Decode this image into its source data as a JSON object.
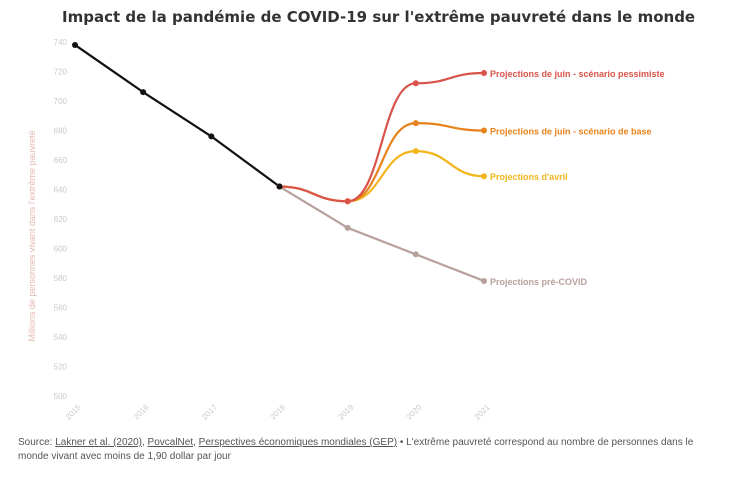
{
  "chart_data": {
    "type": "line",
    "title": "Impact de la pandémie de COVID-19 sur l'extrême pauvreté dans le monde",
    "xlabel": "",
    "ylabel": "Millions de personnes vivant dans l'extrême pauvreté",
    "x": [
      "2015",
      "2016",
      "2017",
      "2018",
      "2019",
      "2020",
      "2021"
    ],
    "ylim": [
      500,
      740
    ],
    "yticks": [
      "740",
      "720",
      "700",
      "680",
      "660",
      "640",
      "620",
      "600",
      "580",
      "560",
      "540",
      "520",
      "500"
    ],
    "grid": false,
    "legend": "direct labels at line ends",
    "series": [
      {
        "name": "",
        "color": "#111111",
        "values": [
          738,
          706,
          676,
          642,
          null,
          null,
          null
        ]
      },
      {
        "name": "Projections pré-COVID",
        "color": "#b8a09c",
        "values": [
          null,
          null,
          null,
          642,
          614,
          596,
          578
        ]
      },
      {
        "name": "Projections d'avril",
        "color": "#f2b51c",
        "values": [
          null,
          null,
          null,
          642,
          632,
          666,
          649
        ]
      },
      {
        "name": "Projections de juin - scénario de base",
        "color": "#e8821a",
        "values": [
          null,
          null,
          null,
          642,
          632,
          685,
          680
        ]
      },
      {
        "name": "Projections de juin - scénario pessimiste",
        "color": "#d9534a",
        "values": [
          null,
          null,
          null,
          642,
          632,
          712,
          719
        ]
      }
    ]
  },
  "source": {
    "prefix": "Source: ",
    "link1": "Lakner et al. (2020)",
    "sep1": ", ",
    "link2": "PovcalNet",
    "sep2": ", ",
    "link3": "Perspectives économiques mondiales (GEP)",
    "note": " • L'extrême pauvreté correspond au nombre de personnes dans le monde vivant avec moins de 1,90 dollar par jour"
  }
}
